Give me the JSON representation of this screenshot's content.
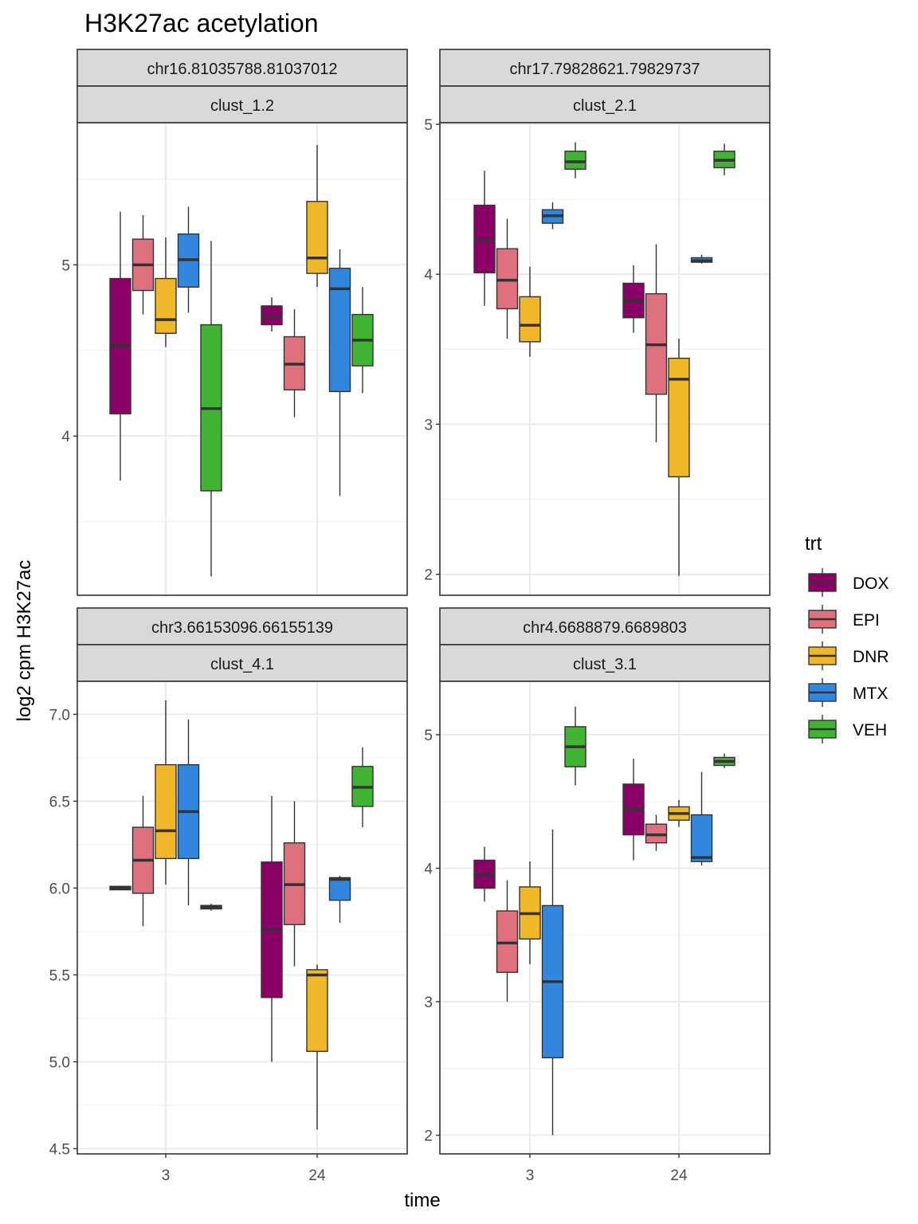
{
  "chart_data": {
    "type": "box",
    "title": "H3K27ac acetylation",
    "xlabel": "time",
    "ylabel": "log2 cpm H3K27ac",
    "categories": [
      "3",
      "24"
    ],
    "legend": {
      "title": "trt",
      "position": "right",
      "items": [
        {
          "name": "DOX",
          "color": "#8B0066"
        },
        {
          "name": "EPI",
          "color": "#DF707E"
        },
        {
          "name": "DNR",
          "color": "#F1B72B"
        },
        {
          "name": "MTX",
          "color": "#3386DD"
        },
        {
          "name": "VEH",
          "color": "#41B333"
        }
      ]
    },
    "grid": true,
    "panels": [
      {
        "strip_top": "chr16.81035788.81037012",
        "strip_bottom": "clust_1.2",
        "ylim": [
          3.07,
          5.83
        ],
        "yticks": [
          4,
          5
        ],
        "ytick_labels": [
          "4",
          "5"
        ],
        "series": [
          {
            "name": "DOX",
            "boxes": [
              {
                "x": "3",
                "min": 3.74,
                "q1": 4.13,
                "median": 4.53,
                "q3": 4.92,
                "max": 5.31
              },
              {
                "x": "24",
                "min": 4.61,
                "q1": 4.65,
                "median": 4.7,
                "q3": 4.76,
                "max": 4.81
              }
            ]
          },
          {
            "name": "EPI",
            "boxes": [
              {
                "x": "3",
                "min": 4.71,
                "q1": 4.85,
                "median": 5.0,
                "q3": 5.15,
                "max": 5.29
              },
              {
                "x": "24",
                "min": 4.11,
                "q1": 4.27,
                "median": 4.42,
                "q3": 4.58,
                "max": 4.74
              }
            ]
          },
          {
            "name": "DNR",
            "boxes": [
              {
                "x": "3",
                "min": 4.52,
                "q1": 4.6,
                "median": 4.68,
                "q3": 4.92,
                "max": 5.16
              },
              {
                "x": "24",
                "min": 4.87,
                "q1": 4.95,
                "median": 5.04,
                "q3": 5.37,
                "max": 5.7
              }
            ]
          },
          {
            "name": "MTX",
            "boxes": [
              {
                "x": "3",
                "min": 4.72,
                "q1": 4.87,
                "median": 5.03,
                "q3": 5.18,
                "max": 5.34
              },
              {
                "x": "24",
                "min": 3.65,
                "q1": 4.26,
                "median": 4.86,
                "q3": 4.98,
                "max": 5.09
              }
            ]
          },
          {
            "name": "VEH",
            "boxes": [
              {
                "x": "3",
                "min": 3.18,
                "q1": 3.68,
                "median": 4.16,
                "q3": 4.65,
                "max": 5.14
              },
              {
                "x": "24",
                "min": 4.25,
                "q1": 4.41,
                "median": 4.56,
                "q3": 4.71,
                "max": 4.87
              }
            ]
          }
        ]
      },
      {
        "strip_top": "chr17.79828621.79829737",
        "strip_bottom": "clust_2.1",
        "ylim": [
          1.86,
          5.01
        ],
        "yticks": [
          2,
          3,
          4,
          5
        ],
        "ytick_labels": [
          "2",
          "3",
          "4",
          "5"
        ],
        "series": [
          {
            "name": "DOX",
            "boxes": [
              {
                "x": "3",
                "min": 3.79,
                "q1": 4.01,
                "median": 4.23,
                "q3": 4.46,
                "max": 4.69
              },
              {
                "x": "24",
                "min": 3.61,
                "q1": 3.71,
                "median": 3.82,
                "q3": 3.94,
                "max": 4.06
              }
            ]
          },
          {
            "name": "EPI",
            "boxes": [
              {
                "x": "3",
                "min": 3.57,
                "q1": 3.77,
                "median": 3.96,
                "q3": 4.17,
                "max": 4.37
              },
              {
                "x": "24",
                "min": 2.88,
                "q1": 3.2,
                "median": 3.53,
                "q3": 3.87,
                "max": 4.2
              }
            ]
          },
          {
            "name": "DNR",
            "boxes": [
              {
                "x": "3",
                "min": 3.45,
                "q1": 3.55,
                "median": 3.66,
                "q3": 3.85,
                "max": 4.05
              },
              {
                "x": "24",
                "min": 1.99,
                "q1": 2.65,
                "median": 3.3,
                "q3": 3.44,
                "max": 3.57
              }
            ]
          },
          {
            "name": "MTX",
            "boxes": [
              {
                "x": "3",
                "min": 4.3,
                "q1": 4.34,
                "median": 4.39,
                "q3": 4.43,
                "max": 4.48
              },
              {
                "x": "24",
                "min": 4.07,
                "q1": 4.08,
                "median": 4.09,
                "q3": 4.11,
                "max": 4.13
              }
            ]
          },
          {
            "name": "VEH",
            "boxes": [
              {
                "x": "3",
                "min": 4.64,
                "q1": 4.7,
                "median": 4.75,
                "q3": 4.82,
                "max": 4.88
              },
              {
                "x": "24",
                "min": 4.66,
                "q1": 4.71,
                "median": 4.76,
                "q3": 4.82,
                "max": 4.87
              }
            ]
          }
        ]
      },
      {
        "strip_top": "chr3.66153096.66155139",
        "strip_bottom": "clust_4.1",
        "ylim": [
          4.47,
          7.19
        ],
        "yticks": [
          4.5,
          5.0,
          5.5,
          6.0,
          6.5,
          7.0
        ],
        "ytick_labels": [
          "4.5",
          "5.0",
          "5.5",
          "6.0",
          "6.5",
          "7.0"
        ],
        "series": [
          {
            "name": "DOX",
            "boxes": [
              {
                "x": "3",
                "min": 5.99,
                "q1": 5.99,
                "median": 6.0,
                "q3": 6.01,
                "max": 6.01
              },
              {
                "x": "24",
                "min": 5.0,
                "q1": 5.37,
                "median": 5.76,
                "q3": 6.15,
                "max": 6.53
              }
            ]
          },
          {
            "name": "EPI",
            "boxes": [
              {
                "x": "3",
                "min": 5.78,
                "q1": 5.97,
                "median": 6.16,
                "q3": 6.35,
                "max": 6.53
              },
              {
                "x": "24",
                "min": 5.55,
                "q1": 5.79,
                "median": 6.02,
                "q3": 6.26,
                "max": 6.5
              }
            ]
          },
          {
            "name": "DNR",
            "boxes": [
              {
                "x": "3",
                "min": 6.02,
                "q1": 6.17,
                "median": 6.33,
                "q3": 6.71,
                "max": 7.08
              },
              {
                "x": "24",
                "min": 4.61,
                "q1": 5.06,
                "median": 5.5,
                "q3": 5.53,
                "max": 5.56
              }
            ]
          },
          {
            "name": "MTX",
            "boxes": [
              {
                "x": "3",
                "min": 5.9,
                "q1": 6.17,
                "median": 6.44,
                "q3": 6.71,
                "max": 6.97
              },
              {
                "x": "24",
                "min": 5.8,
                "q1": 5.93,
                "median": 6.05,
                "q3": 6.06,
                "max": 6.07
              }
            ]
          },
          {
            "name": "VEH",
            "boxes": [
              {
                "x": "3",
                "min": 5.87,
                "q1": 5.88,
                "median": 5.89,
                "q3": 5.9,
                "max": 5.91
              },
              {
                "x": "24",
                "min": 6.35,
                "q1": 6.47,
                "median": 6.58,
                "q3": 6.7,
                "max": 6.81
              }
            ]
          }
        ]
      },
      {
        "strip_top": "chr4.6688879.6689803",
        "strip_bottom": "clust_3.1",
        "ylim": [
          1.86,
          5.4
        ],
        "yticks": [
          2,
          3,
          4,
          5
        ],
        "ytick_labels": [
          "2",
          "3",
          "4",
          "5"
        ],
        "series": [
          {
            "name": "DOX",
            "boxes": [
              {
                "x": "3",
                "min": 3.75,
                "q1": 3.85,
                "median": 3.95,
                "q3": 4.06,
                "max": 4.16
              },
              {
                "x": "24",
                "min": 4.06,
                "q1": 4.25,
                "median": 4.44,
                "q3": 4.63,
                "max": 4.82
              }
            ]
          },
          {
            "name": "EPI",
            "boxes": [
              {
                "x": "3",
                "min": 3.0,
                "q1": 3.22,
                "median": 3.44,
                "q3": 3.68,
                "max": 3.91
              },
              {
                "x": "24",
                "min": 4.13,
                "q1": 4.19,
                "median": 4.25,
                "q3": 4.33,
                "max": 4.4
              }
            ]
          },
          {
            "name": "DNR",
            "boxes": [
              {
                "x": "3",
                "min": 3.28,
                "q1": 3.47,
                "median": 3.66,
                "q3": 3.86,
                "max": 4.05
              },
              {
                "x": "24",
                "min": 4.31,
                "q1": 4.36,
                "median": 4.41,
                "q3": 4.46,
                "max": 4.51
              }
            ]
          },
          {
            "name": "MTX",
            "boxes": [
              {
                "x": "3",
                "min": 2.0,
                "q1": 2.58,
                "median": 3.15,
                "q3": 3.72,
                "max": 4.29
              },
              {
                "x": "24",
                "min": 4.02,
                "q1": 4.05,
                "median": 4.08,
                "q3": 4.4,
                "max": 4.72
              }
            ]
          },
          {
            "name": "VEH",
            "boxes": [
              {
                "x": "3",
                "min": 4.62,
                "q1": 4.76,
                "median": 4.91,
                "q3": 5.06,
                "max": 5.21
              },
              {
                "x": "24",
                "min": 4.75,
                "q1": 4.77,
                "median": 4.8,
                "q3": 4.83,
                "max": 4.86
              }
            ]
          }
        ]
      }
    ]
  }
}
